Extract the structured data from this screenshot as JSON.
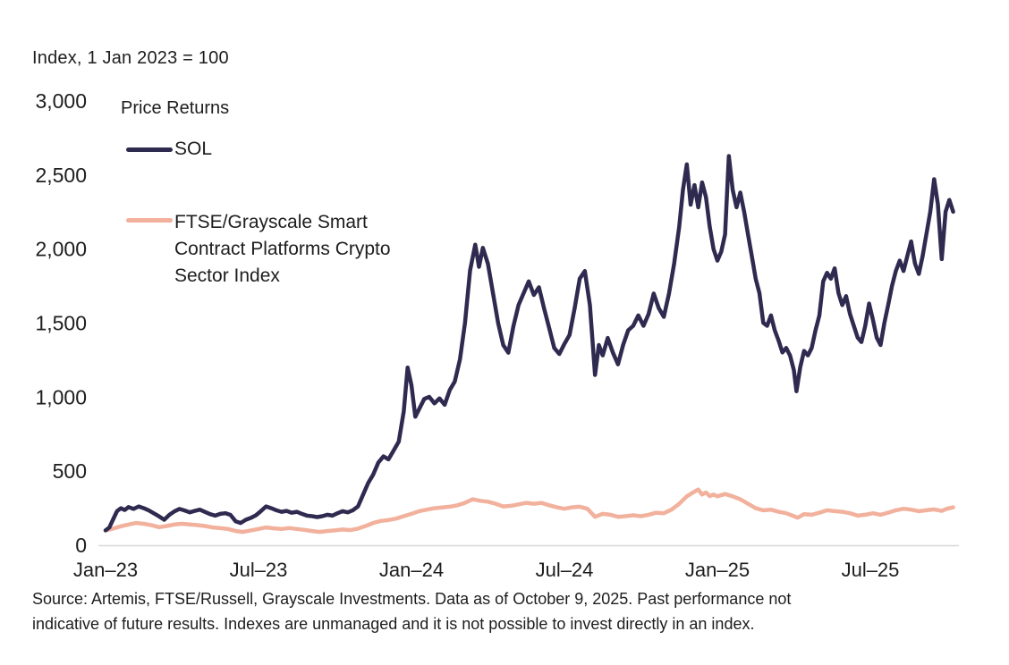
{
  "title": "Index, 1 Jan 2023 = 100",
  "legend": {
    "heading": "Price Returns",
    "series": [
      {
        "label": "SOL",
        "color": "#2f2a4f"
      },
      {
        "label": "FTSE/Grayscale Smart Contract Platforms Crypto Sector Index",
        "label_lines": [
          "FTSE/Grayscale Smart",
          "Contract Platforms Crypto",
          "Sector Index"
        ],
        "color": "#f2b19c"
      }
    ]
  },
  "footnote": {
    "lines": [
      "Source: Artemis, FTSE/Russell, Grayscale Investments. Data as of October 9, 2025. Past performance not",
      "indicative of future results. Indexes are unmanaged and it is not possible to invest directly in an index."
    ]
  },
  "chart_data": {
    "type": "line",
    "title": "Index, 1 Jan 2023 = 100",
    "xlabel": "",
    "ylabel": "Index, 1 Jan 2023 = 100",
    "x_unit": "months since 1 Jan 2023",
    "xlim": [
      0,
      33.4
    ],
    "ylim": [
      0,
      3000
    ],
    "grid": false,
    "legend_position": "top-left-inside",
    "axis_color": "#d8d8d8",
    "text_color": "#1d1d1f",
    "x_ticks": [
      0,
      6,
      12,
      18,
      24,
      30
    ],
    "x_tick_labels": [
      "Jan–23",
      "Jul–23",
      "Jan–24",
      "Jul–24",
      "Jan–25",
      "Jul–25"
    ],
    "y_ticks": [
      0,
      500,
      1000,
      1500,
      2000,
      2500,
      3000
    ],
    "y_tick_labels": [
      "0",
      "500",
      "1,000",
      "1,500",
      "2,000",
      "2,500",
      "3,000"
    ],
    "series": [
      {
        "name": "SOL",
        "color": "#2f2a4f",
        "stroke_width": 4.5,
        "points": [
          [
            0,
            100
          ],
          [
            0.15,
            120
          ],
          [
            0.3,
            175
          ],
          [
            0.45,
            230
          ],
          [
            0.6,
            250
          ],
          [
            0.75,
            238
          ],
          [
            0.9,
            258
          ],
          [
            1.1,
            245
          ],
          [
            1.3,
            262
          ],
          [
            1.5,
            250
          ],
          [
            1.7,
            235
          ],
          [
            1.9,
            215
          ],
          [
            2.1,
            195
          ],
          [
            2.3,
            172
          ],
          [
            2.5,
            205
          ],
          [
            2.7,
            228
          ],
          [
            2.9,
            245
          ],
          [
            3.1,
            235
          ],
          [
            3.3,
            222
          ],
          [
            3.5,
            232
          ],
          [
            3.7,
            240
          ],
          [
            3.9,
            225
          ],
          [
            4.1,
            210
          ],
          [
            4.3,
            200
          ],
          [
            4.5,
            212
          ],
          [
            4.7,
            216
          ],
          [
            4.9,
            205
          ],
          [
            5.1,
            162
          ],
          [
            5.3,
            150
          ],
          [
            5.5,
            172
          ],
          [
            5.7,
            185
          ],
          [
            5.9,
            202
          ],
          [
            6.1,
            232
          ],
          [
            6.3,
            262
          ],
          [
            6.5,
            250
          ],
          [
            6.7,
            236
          ],
          [
            6.9,
            226
          ],
          [
            7.1,
            232
          ],
          [
            7.3,
            220
          ],
          [
            7.5,
            226
          ],
          [
            7.7,
            212
          ],
          [
            7.9,
            200
          ],
          [
            8.1,
            196
          ],
          [
            8.3,
            190
          ],
          [
            8.5,
            196
          ],
          [
            8.7,
            206
          ],
          [
            8.9,
            200
          ],
          [
            9.1,
            216
          ],
          [
            9.3,
            230
          ],
          [
            9.5,
            222
          ],
          [
            9.7,
            236
          ],
          [
            9.9,
            262
          ],
          [
            10.1,
            340
          ],
          [
            10.3,
            420
          ],
          [
            10.5,
            478
          ],
          [
            10.7,
            558
          ],
          [
            10.9,
            600
          ],
          [
            11.1,
            580
          ],
          [
            11.3,
            640
          ],
          [
            11.5,
            700
          ],
          [
            11.7,
            905
          ],
          [
            11.85,
            1200
          ],
          [
            12,
            1080
          ],
          [
            12.15,
            868
          ],
          [
            12.3,
            920
          ],
          [
            12.5,
            988
          ],
          [
            12.7,
            1002
          ],
          [
            12.9,
            958
          ],
          [
            13.1,
            992
          ],
          [
            13.3,
            948
          ],
          [
            13.5,
            1048
          ],
          [
            13.7,
            1105
          ],
          [
            13.9,
            1255
          ],
          [
            14.1,
            1500
          ],
          [
            14.3,
            1855
          ],
          [
            14.5,
            2030
          ],
          [
            14.65,
            1880
          ],
          [
            14.8,
            2008
          ],
          [
            15,
            1900
          ],
          [
            15.2,
            1700
          ],
          [
            15.4,
            1500
          ],
          [
            15.6,
            1352
          ],
          [
            15.8,
            1300
          ],
          [
            16,
            1480
          ],
          [
            16.2,
            1622
          ],
          [
            16.4,
            1702
          ],
          [
            16.6,
            1782
          ],
          [
            16.8,
            1690
          ],
          [
            17,
            1742
          ],
          [
            17.2,
            1600
          ],
          [
            17.4,
            1468
          ],
          [
            17.6,
            1332
          ],
          [
            17.8,
            1292
          ],
          [
            18,
            1360
          ],
          [
            18.2,
            1420
          ],
          [
            18.4,
            1600
          ],
          [
            18.6,
            1800
          ],
          [
            18.8,
            1852
          ],
          [
            19,
            1620
          ],
          [
            19.2,
            1150
          ],
          [
            19.35,
            1352
          ],
          [
            19.5,
            1282
          ],
          [
            19.7,
            1400
          ],
          [
            19.9,
            1302
          ],
          [
            20.1,
            1222
          ],
          [
            20.3,
            1352
          ],
          [
            20.5,
            1452
          ],
          [
            20.7,
            1482
          ],
          [
            20.9,
            1552
          ],
          [
            21.1,
            1482
          ],
          [
            21.3,
            1562
          ],
          [
            21.5,
            1700
          ],
          [
            21.7,
            1602
          ],
          [
            21.9,
            1542
          ],
          [
            22.1,
            1700
          ],
          [
            22.3,
            1900
          ],
          [
            22.5,
            2150
          ],
          [
            22.65,
            2400
          ],
          [
            22.8,
            2572
          ],
          [
            22.95,
            2300
          ],
          [
            23.1,
            2432
          ],
          [
            23.25,
            2282
          ],
          [
            23.4,
            2450
          ],
          [
            23.55,
            2352
          ],
          [
            23.7,
            2152
          ],
          [
            23.85,
            2000
          ],
          [
            24,
            1922
          ],
          [
            24.15,
            1982
          ],
          [
            24.3,
            2100
          ],
          [
            24.45,
            2628
          ],
          [
            24.6,
            2400
          ],
          [
            24.75,
            2282
          ],
          [
            24.9,
            2382
          ],
          [
            25.05,
            2252
          ],
          [
            25.2,
            2100
          ],
          [
            25.35,
            1952
          ],
          [
            25.5,
            1800
          ],
          [
            25.65,
            1702
          ],
          [
            25.8,
            1502
          ],
          [
            25.95,
            1482
          ],
          [
            26.1,
            1552
          ],
          [
            26.25,
            1452
          ],
          [
            26.4,
            1382
          ],
          [
            26.55,
            1302
          ],
          [
            26.7,
            1332
          ],
          [
            26.85,
            1282
          ],
          [
            27,
            1182
          ],
          [
            27.1,
            1040
          ],
          [
            27.25,
            1202
          ],
          [
            27.4,
            1312
          ],
          [
            27.55,
            1282
          ],
          [
            27.7,
            1332
          ],
          [
            27.85,
            1452
          ],
          [
            28,
            1552
          ],
          [
            28.15,
            1782
          ],
          [
            28.3,
            1840
          ],
          [
            28.45,
            1800
          ],
          [
            28.6,
            1870
          ],
          [
            28.75,
            1702
          ],
          [
            28.9,
            1622
          ],
          [
            29.05,
            1682
          ],
          [
            29.2,
            1562
          ],
          [
            29.35,
            1482
          ],
          [
            29.5,
            1402
          ],
          [
            29.65,
            1372
          ],
          [
            29.8,
            1482
          ],
          [
            29.95,
            1632
          ],
          [
            30.1,
            1522
          ],
          [
            30.25,
            1402
          ],
          [
            30.4,
            1352
          ],
          [
            30.55,
            1502
          ],
          [
            30.7,
            1622
          ],
          [
            30.85,
            1752
          ],
          [
            31,
            1852
          ],
          [
            31.15,
            1922
          ],
          [
            31.3,
            1852
          ],
          [
            31.45,
            1952
          ],
          [
            31.6,
            2052
          ],
          [
            31.75,
            1902
          ],
          [
            31.9,
            1832
          ],
          [
            32.05,
            1952
          ],
          [
            32.2,
            2102
          ],
          [
            32.35,
            2252
          ],
          [
            32.5,
            2472
          ],
          [
            32.65,
            2302
          ],
          [
            32.8,
            1932
          ],
          [
            32.95,
            2252
          ],
          [
            33.1,
            2332
          ],
          [
            33.25,
            2252
          ]
        ]
      },
      {
        "name": "FTSE/Grayscale Smart Contract Platforms Crypto Sector Index",
        "color": "#f2b19c",
        "stroke_width": 4.5,
        "points": [
          [
            0,
            100
          ],
          [
            0.3,
            112
          ],
          [
            0.6,
            128
          ],
          [
            0.9,
            140
          ],
          [
            1.2,
            150
          ],
          [
            1.5,
            145
          ],
          [
            1.8,
            135
          ],
          [
            2.1,
            122
          ],
          [
            2.4,
            130
          ],
          [
            2.7,
            140
          ],
          [
            3,
            145
          ],
          [
            3.3,
            140
          ],
          [
            3.6,
            136
          ],
          [
            3.9,
            130
          ],
          [
            4.2,
            120
          ],
          [
            4.5,
            115
          ],
          [
            4.8,
            110
          ],
          [
            5.1,
            96
          ],
          [
            5.4,
            90
          ],
          [
            5.7,
            100
          ],
          [
            6,
            110
          ],
          [
            6.3,
            120
          ],
          [
            6.6,
            114
          ],
          [
            6.9,
            110
          ],
          [
            7.2,
            116
          ],
          [
            7.5,
            110
          ],
          [
            7.8,
            104
          ],
          [
            8.1,
            96
          ],
          [
            8.4,
            90
          ],
          [
            8.7,
            96
          ],
          [
            9,
            100
          ],
          [
            9.3,
            106
          ],
          [
            9.6,
            102
          ],
          [
            9.9,
            112
          ],
          [
            10.2,
            130
          ],
          [
            10.5,
            150
          ],
          [
            10.8,
            164
          ],
          [
            11.1,
            170
          ],
          [
            11.4,
            180
          ],
          [
            11.7,
            196
          ],
          [
            12,
            212
          ],
          [
            12.3,
            230
          ],
          [
            12.6,
            240
          ],
          [
            12.9,
            250
          ],
          [
            13.2,
            255
          ],
          [
            13.5,
            260
          ],
          [
            13.8,
            270
          ],
          [
            14.1,
            286
          ],
          [
            14.4,
            310
          ],
          [
            14.7,
            300
          ],
          [
            15,
            294
          ],
          [
            15.3,
            280
          ],
          [
            15.6,
            262
          ],
          [
            15.9,
            266
          ],
          [
            16.2,
            276
          ],
          [
            16.5,
            286
          ],
          [
            16.8,
            280
          ],
          [
            17.1,
            286
          ],
          [
            17.4,
            270
          ],
          [
            17.7,
            256
          ],
          [
            18,
            246
          ],
          [
            18.3,
            256
          ],
          [
            18.6,
            260
          ],
          [
            18.9,
            246
          ],
          [
            19.2,
            192
          ],
          [
            19.5,
            212
          ],
          [
            19.8,
            206
          ],
          [
            20.1,
            192
          ],
          [
            20.4,
            196
          ],
          [
            20.7,
            202
          ],
          [
            21,
            196
          ],
          [
            21.3,
            206
          ],
          [
            21.6,
            220
          ],
          [
            21.9,
            216
          ],
          [
            22.2,
            240
          ],
          [
            22.5,
            280
          ],
          [
            22.8,
            330
          ],
          [
            23.1,
            362
          ],
          [
            23.25,
            376
          ],
          [
            23.4,
            342
          ],
          [
            23.55,
            356
          ],
          [
            23.7,
            332
          ],
          [
            23.85,
            342
          ],
          [
            24,
            330
          ],
          [
            24.3,
            346
          ],
          [
            24.6,
            330
          ],
          [
            24.9,
            310
          ],
          [
            25.2,
            280
          ],
          [
            25.5,
            250
          ],
          [
            25.8,
            236
          ],
          [
            26.1,
            240
          ],
          [
            26.4,
            226
          ],
          [
            26.7,
            216
          ],
          [
            27,
            196
          ],
          [
            27.15,
            186
          ],
          [
            27.4,
            210
          ],
          [
            27.7,
            206
          ],
          [
            28,
            220
          ],
          [
            28.3,
            236
          ],
          [
            28.6,
            230
          ],
          [
            28.9,
            226
          ],
          [
            29.2,
            216
          ],
          [
            29.5,
            200
          ],
          [
            29.8,
            206
          ],
          [
            30.1,
            216
          ],
          [
            30.4,
            206
          ],
          [
            30.7,
            220
          ],
          [
            31,
            236
          ],
          [
            31.3,
            246
          ],
          [
            31.6,
            240
          ],
          [
            31.9,
            230
          ],
          [
            32.2,
            236
          ],
          [
            32.5,
            242
          ],
          [
            32.8,
            232
          ],
          [
            33,
            246
          ],
          [
            33.25,
            256
          ]
        ]
      }
    ]
  }
}
